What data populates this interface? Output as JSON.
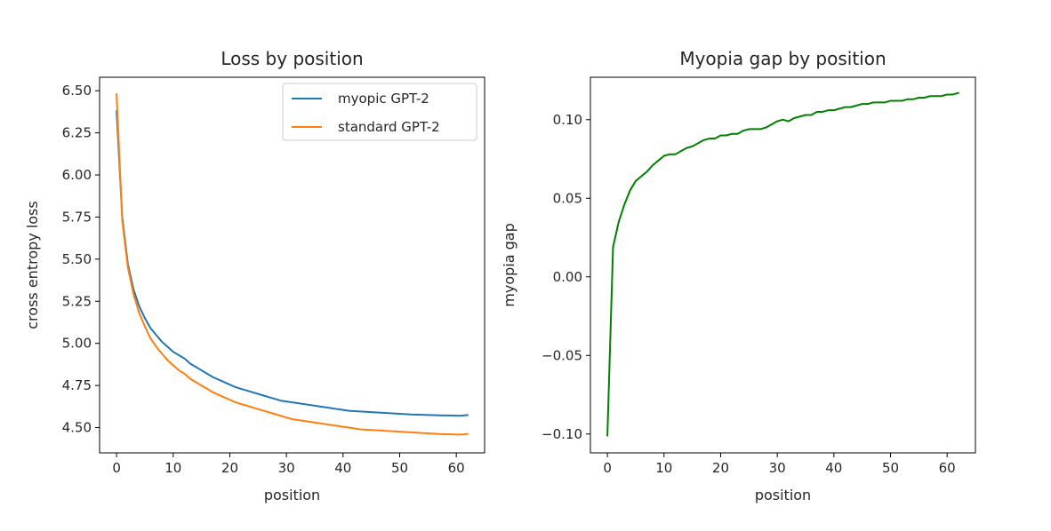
{
  "chart_data": [
    {
      "type": "line",
      "title": "Loss by position",
      "xlabel": "position",
      "ylabel": "cross entropy loss",
      "xlim": [
        -3,
        65
      ],
      "ylim": [
        4.35,
        6.58
      ],
      "xticks": [
        0,
        10,
        20,
        30,
        40,
        50,
        60
      ],
      "xtick_labels": [
        "0",
        "10",
        "20",
        "30",
        "40",
        "50",
        "60"
      ],
      "yticks": [
        4.5,
        4.75,
        5.0,
        5.25,
        5.5,
        5.75,
        6.0,
        6.25,
        6.5
      ],
      "ytick_labels": [
        "4.50",
        "4.75",
        "5.00",
        "5.25",
        "5.50",
        "5.75",
        "6.00",
        "6.25",
        "6.50"
      ],
      "legend_position": "top-right",
      "grid": false,
      "series": [
        {
          "name": "myopic GPT-2",
          "color": "#1f77b4",
          "x": [
            0,
            1,
            2,
            3,
            4,
            5,
            6,
            7,
            8,
            9,
            10,
            11,
            12,
            13,
            14,
            15,
            16,
            17,
            18,
            19,
            20,
            21,
            22,
            23,
            24,
            25,
            26,
            27,
            28,
            29,
            30,
            31,
            32,
            33,
            34,
            35,
            36,
            37,
            38,
            39,
            40,
            41,
            42,
            43,
            44,
            45,
            46,
            47,
            48,
            49,
            50,
            51,
            52,
            53,
            54,
            55,
            56,
            57,
            58,
            59,
            60,
            61,
            62
          ],
          "values": [
            6.38,
            5.75,
            5.47,
            5.32,
            5.22,
            5.15,
            5.09,
            5.05,
            5.01,
            4.98,
            4.95,
            4.93,
            4.91,
            4.88,
            4.86,
            4.84,
            4.82,
            4.8,
            4.785,
            4.77,
            4.755,
            4.74,
            4.73,
            4.72,
            4.71,
            4.7,
            4.69,
            4.68,
            4.67,
            4.66,
            4.655,
            4.65,
            4.645,
            4.64,
            4.635,
            4.63,
            4.625,
            4.62,
            4.615,
            4.61,
            4.605,
            4.6,
            4.598,
            4.596,
            4.594,
            4.592,
            4.59,
            4.588,
            4.586,
            4.584,
            4.582,
            4.58,
            4.578,
            4.577,
            4.576,
            4.575,
            4.574,
            4.573,
            4.572,
            4.572,
            4.571,
            4.571,
            4.575
          ]
        },
        {
          "name": "standard GPT-2",
          "color": "#ff7f0e",
          "x": [
            0,
            1,
            2,
            3,
            4,
            5,
            6,
            7,
            8,
            9,
            10,
            11,
            12,
            13,
            14,
            15,
            16,
            17,
            18,
            19,
            20,
            21,
            22,
            23,
            24,
            25,
            26,
            27,
            28,
            29,
            30,
            31,
            32,
            33,
            34,
            35,
            36,
            37,
            38,
            39,
            40,
            41,
            42,
            43,
            44,
            45,
            46,
            47,
            48,
            49,
            50,
            51,
            52,
            53,
            54,
            55,
            56,
            57,
            58,
            59,
            60,
            61,
            62
          ],
          "values": [
            6.48,
            5.73,
            5.45,
            5.29,
            5.18,
            5.1,
            5.03,
            4.98,
            4.94,
            4.9,
            4.87,
            4.84,
            4.82,
            4.79,
            4.77,
            4.75,
            4.73,
            4.71,
            4.695,
            4.68,
            4.665,
            4.65,
            4.64,
            4.63,
            4.62,
            4.61,
            4.6,
            4.59,
            4.58,
            4.57,
            4.56,
            4.55,
            4.545,
            4.54,
            4.535,
            4.53,
            4.525,
            4.52,
            4.515,
            4.51,
            4.505,
            4.5,
            4.495,
            4.49,
            4.488,
            4.486,
            4.484,
            4.482,
            4.48,
            4.478,
            4.476,
            4.474,
            4.472,
            4.47,
            4.468,
            4.466,
            4.464,
            4.462,
            4.461,
            4.46,
            4.459,
            4.459,
            4.462
          ]
        }
      ]
    },
    {
      "type": "line",
      "title": "Myopia gap by position",
      "xlabel": "position",
      "ylabel": "myopia gap",
      "xlim": [
        -3,
        65
      ],
      "ylim": [
        -0.112,
        0.127
      ],
      "xticks": [
        0,
        10,
        20,
        30,
        40,
        50,
        60
      ],
      "xtick_labels": [
        "0",
        "10",
        "20",
        "30",
        "40",
        "50",
        "60"
      ],
      "yticks": [
        -0.1,
        -0.05,
        0.0,
        0.05,
        0.1
      ],
      "ytick_labels": [
        "−0.10",
        "−0.05",
        "0.00",
        "0.05",
        "0.10"
      ],
      "grid": false,
      "series": [
        {
          "name": "myopia gap",
          "color": "#008000",
          "x": [
            0,
            1,
            2,
            3,
            4,
            5,
            6,
            7,
            8,
            9,
            10,
            11,
            12,
            13,
            14,
            15,
            16,
            17,
            18,
            19,
            20,
            21,
            22,
            23,
            24,
            25,
            26,
            27,
            28,
            29,
            30,
            31,
            32,
            33,
            34,
            35,
            36,
            37,
            38,
            39,
            40,
            41,
            42,
            43,
            44,
            45,
            46,
            47,
            48,
            49,
            50,
            51,
            52,
            53,
            54,
            55,
            56,
            57,
            58,
            59,
            60,
            61,
            62
          ],
          "values": [
            -0.101,
            0.019,
            0.035,
            0.046,
            0.055,
            0.061,
            0.064,
            0.067,
            0.071,
            0.074,
            0.077,
            0.078,
            0.078,
            0.08,
            0.082,
            0.083,
            0.085,
            0.087,
            0.088,
            0.088,
            0.09,
            0.09,
            0.091,
            0.091,
            0.093,
            0.094,
            0.094,
            0.094,
            0.095,
            0.097,
            0.099,
            0.1,
            0.099,
            0.101,
            0.102,
            0.103,
            0.103,
            0.105,
            0.105,
            0.106,
            0.106,
            0.107,
            0.108,
            0.108,
            0.109,
            0.11,
            0.11,
            0.111,
            0.111,
            0.111,
            0.112,
            0.112,
            0.112,
            0.113,
            0.113,
            0.114,
            0.114,
            0.115,
            0.115,
            0.115,
            0.116,
            0.116,
            0.117
          ]
        }
      ]
    }
  ]
}
